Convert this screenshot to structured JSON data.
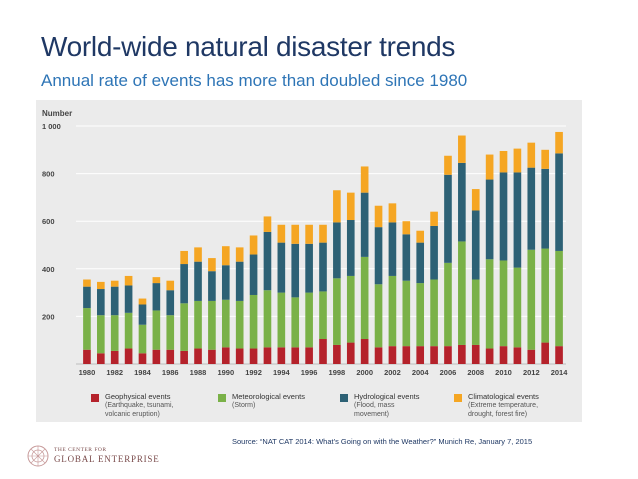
{
  "slide": {
    "title": "World-wide natural disaster trends",
    "subtitle": "Annual rate of events has more than doubled since 1980",
    "source": "Source: “NAT CAT 2014: What’s Going on with the Weather?” Munich Re, January 7, 2015",
    "logo_top": "THE CENTER FOR",
    "logo_main": "GLOBAL ENTERPRISE"
  },
  "colors": {
    "geophysical": "#b5222b",
    "meteorological": "#7ab148",
    "hydrological": "#2d6175",
    "climatological": "#f5a623",
    "grid": "#ffffff",
    "panel": "#ebebeb",
    "text": "#444444"
  },
  "legend": [
    {
      "key": "geophysical",
      "title": "Geophysical events",
      "detail": [
        "(Earthquake, tsunami,",
        "volcanic eruption)"
      ]
    },
    {
      "key": "meteorological",
      "title": "Meteorological events",
      "detail": [
        "(Storm)"
      ]
    },
    {
      "key": "hydrological",
      "title": "Hydrological events",
      "detail": [
        "(Flood, mass",
        "movement)"
      ]
    },
    {
      "key": "climatological",
      "title": "Climatological events",
      "detail": [
        "(Extreme temperature,",
        "drought, forest fire)"
      ]
    }
  ],
  "chart_data": {
    "type": "bar",
    "stacked": true,
    "ylabel": "Number",
    "ylim": [
      0,
      1000
    ],
    "yticks": [
      200,
      400,
      600,
      800,
      1000
    ],
    "ytick_labels": [
      "200",
      "400",
      "600",
      "800",
      "1 000"
    ],
    "categories": [
      "1980",
      "1981",
      "1982",
      "1983",
      "1984",
      "1985",
      "1986",
      "1987",
      "1988",
      "1989",
      "1990",
      "1991",
      "1992",
      "1993",
      "1994",
      "1995",
      "1996",
      "1997",
      "1998",
      "1999",
      "2000",
      "2001",
      "2002",
      "2003",
      "2004",
      "2005",
      "2006",
      "2007",
      "2008",
      "2009",
      "2010",
      "2011",
      "2012",
      "2013",
      "2014"
    ],
    "xtick_labels": [
      "1980",
      "1982",
      "1984",
      "1986",
      "1988",
      "1990",
      "1992",
      "1994",
      "1996",
      "1998",
      "2000",
      "2002",
      "2004",
      "2006",
      "2008",
      "2010",
      "2012",
      "2014"
    ],
    "series": [
      {
        "name": "Geophysical events",
        "key": "geophysical",
        "values": [
          60,
          45,
          55,
          65,
          45,
          60,
          60,
          55,
          65,
          60,
          70,
          65,
          65,
          70,
          70,
          70,
          70,
          105,
          80,
          90,
          105,
          70,
          75,
          75,
          75,
          75,
          75,
          80,
          80,
          65,
          75,
          70,
          60,
          90,
          75
        ]
      },
      {
        "name": "Meteorological events",
        "key": "meteorological",
        "values": [
          175,
          160,
          150,
          150,
          120,
          165,
          145,
          200,
          200,
          205,
          200,
          200,
          225,
          240,
          230,
          210,
          230,
          200,
          280,
          280,
          345,
          265,
          295,
          275,
          265,
          280,
          350,
          435,
          275,
          375,
          360,
          335,
          420,
          395,
          400
        ]
      },
      {
        "name": "Hydrological events",
        "key": "hydrological",
        "values": [
          90,
          110,
          120,
          115,
          85,
          115,
          105,
          165,
          165,
          125,
          145,
          165,
          170,
          245,
          210,
          225,
          205,
          205,
          235,
          235,
          270,
          240,
          225,
          195,
          170,
          225,
          370,
          330,
          290,
          335,
          370,
          400,
          345,
          335,
          410
        ]
      },
      {
        "name": "Climatological events",
        "key": "climatological",
        "values": [
          30,
          30,
          25,
          40,
          25,
          25,
          40,
          55,
          60,
          55,
          80,
          60,
          80,
          65,
          75,
          80,
          80,
          75,
          135,
          115,
          110,
          90,
          80,
          55,
          50,
          60,
          80,
          115,
          90,
          105,
          90,
          100,
          105,
          80,
          90
        ]
      }
    ]
  }
}
